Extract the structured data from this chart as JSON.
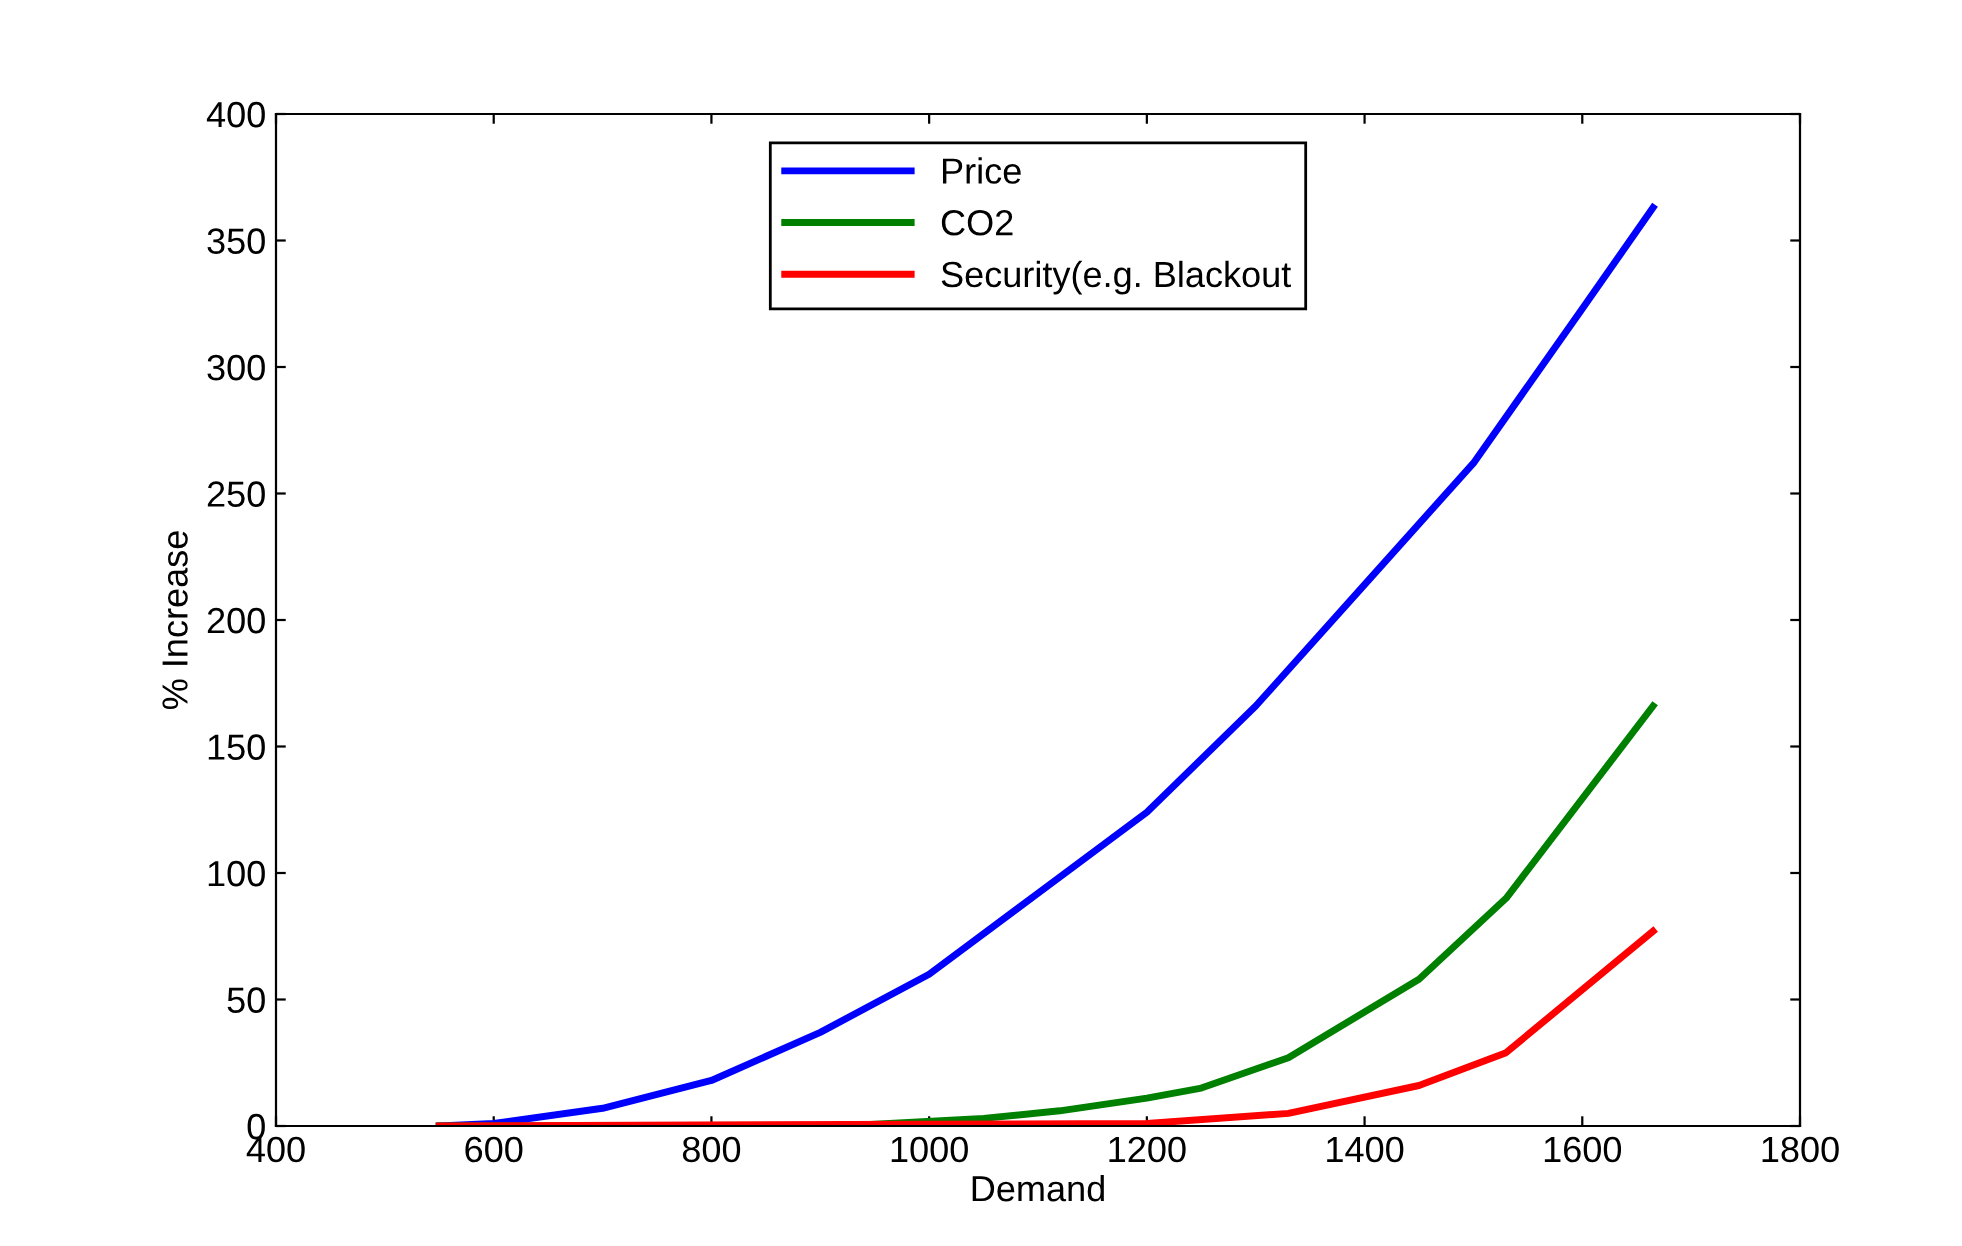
{
  "chart_data": {
    "type": "line",
    "xlabel": "Demand",
    "ylabel": "% Increase",
    "xlim": [
      400,
      1800
    ],
    "xticks": [
      400,
      600,
      800,
      1000,
      1200,
      1400,
      1600,
      1800
    ],
    "ylim": [
      0,
      400
    ],
    "yticks": [
      0,
      50,
      100,
      150,
      200,
      250,
      300,
      350,
      400
    ],
    "grid": false,
    "legend": "top",
    "series": [
      {
        "name": "Price",
        "color": "#0000ff",
        "x": [
          550,
          600,
          700,
          800,
          900,
          1000,
          1100,
          1200,
          1300,
          1400,
          1500,
          1600,
          1665
        ],
        "values": [
          0,
          1,
          7,
          18,
          37,
          60,
          92,
          124,
          166,
          214,
          262,
          323,
          363
        ]
      },
      {
        "name": "CO2",
        "color": "#008000",
        "x": [
          550,
          920,
          1050,
          1120,
          1200,
          1250,
          1330,
          1450,
          1530,
          1665
        ],
        "values": [
          0,
          0,
          3,
          6,
          11,
          15,
          27,
          58,
          90,
          166
        ]
      },
      {
        "name": "Security(e.g. Blackout",
        "color": "#ff0000",
        "x": [
          550,
          1200,
          1330,
          1450,
          1530,
          1665
        ],
        "values": [
          0,
          1,
          5,
          16,
          29,
          77
        ]
      }
    ]
  }
}
